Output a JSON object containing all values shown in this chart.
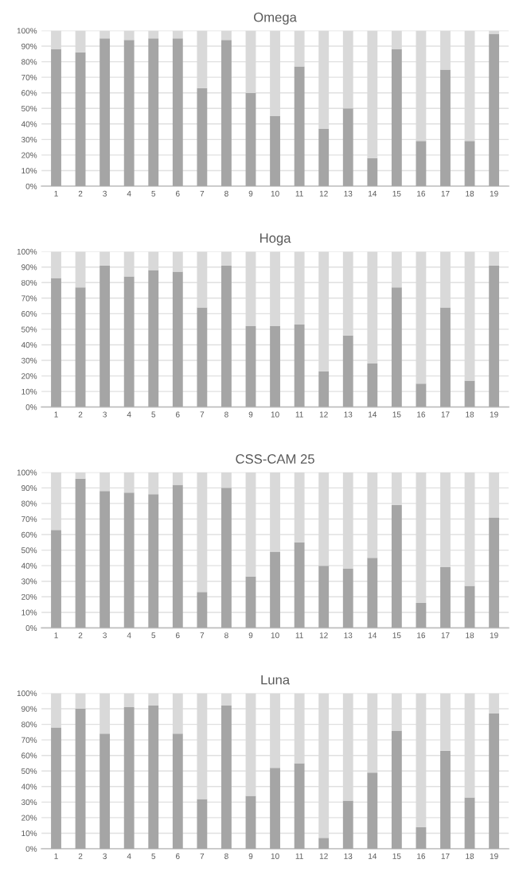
{
  "chart_data": [
    {
      "type": "bar",
      "title": "Omega",
      "stacked": true,
      "categories": [
        "1",
        "2",
        "3",
        "4",
        "5",
        "6",
        "7",
        "8",
        "9",
        "10",
        "11",
        "12",
        "13",
        "14",
        "15",
        "16",
        "17",
        "18",
        "19"
      ],
      "series": [
        {
          "color": "#a5a5a5",
          "values": [
            88,
            86,
            95,
            94,
            95,
            95,
            63,
            94,
            60,
            45,
            77,
            37,
            50,
            18,
            88,
            29,
            75,
            29,
            98
          ]
        },
        {
          "color": "#d9d9d9",
          "values": [
            12,
            14,
            5,
            6,
            5,
            5,
            37,
            6,
            40,
            55,
            23,
            63,
            50,
            82,
            12,
            71,
            25,
            71,
            2
          ]
        }
      ],
      "ylim": [
        0,
        100
      ],
      "yticks": [
        {
          "value": 0,
          "label": "0%"
        },
        {
          "value": 10,
          "label": "10%"
        },
        {
          "value": 20,
          "label": "20%"
        },
        {
          "value": 30,
          "label": "30%"
        },
        {
          "value": 40,
          "label": "40%"
        },
        {
          "value": 50,
          "label": "50%"
        },
        {
          "value": 60,
          "label": "60%"
        },
        {
          "value": 70,
          "label": "70%"
        },
        {
          "value": 80,
          "label": "80%"
        },
        {
          "value": 90,
          "label": "90%"
        },
        {
          "value": 100,
          "label": "100%"
        }
      ],
      "grid": "y"
    },
    {
      "type": "bar",
      "title": "Hoga",
      "stacked": true,
      "categories": [
        "1",
        "2",
        "3",
        "4",
        "5",
        "6",
        "7",
        "8",
        "9",
        "10",
        "11",
        "12",
        "13",
        "14",
        "15",
        "16",
        "17",
        "18",
        "19"
      ],
      "series": [
        {
          "color": "#a5a5a5",
          "values": [
            83,
            77,
            91,
            84,
            88,
            87,
            64,
            91,
            52,
            52,
            53,
            23,
            46,
            28,
            77,
            15,
            64,
            17,
            91
          ]
        },
        {
          "color": "#d9d9d9",
          "values": [
            17,
            23,
            9,
            16,
            12,
            13,
            36,
            9,
            48,
            48,
            47,
            77,
            54,
            72,
            23,
            85,
            36,
            83,
            9
          ]
        }
      ],
      "ylim": [
        0,
        100
      ],
      "yticks": [
        {
          "value": 0,
          "label": "0%"
        },
        {
          "value": 10,
          "label": "10%"
        },
        {
          "value": 20,
          "label": "20%"
        },
        {
          "value": 30,
          "label": "30%"
        },
        {
          "value": 40,
          "label": "40%"
        },
        {
          "value": 50,
          "label": "50%"
        },
        {
          "value": 60,
          "label": "60%"
        },
        {
          "value": 70,
          "label": "70%"
        },
        {
          "value": 80,
          "label": "80%"
        },
        {
          "value": 90,
          "label": "90%"
        },
        {
          "value": 100,
          "label": "100%"
        }
      ],
      "grid": "y"
    },
    {
      "type": "bar",
      "title": "CSS-CAM 25",
      "stacked": true,
      "categories": [
        "1",
        "2",
        "3",
        "4",
        "5",
        "6",
        "7",
        "8",
        "9",
        "10",
        "11",
        "12",
        "13",
        "14",
        "15",
        "16",
        "17",
        "18",
        "19"
      ],
      "series": [
        {
          "color": "#a5a5a5",
          "values": [
            63,
            96,
            88,
            87,
            86,
            92,
            23,
            90,
            33,
            49,
            55,
            40,
            38,
            45,
            79,
            16,
            39,
            27,
            71
          ]
        },
        {
          "color": "#d9d9d9",
          "values": [
            37,
            4,
            12,
            13,
            14,
            8,
            77,
            10,
            67,
            51,
            45,
            60,
            62,
            55,
            21,
            84,
            61,
            73,
            29
          ]
        }
      ],
      "ylim": [
        0,
        100
      ],
      "yticks": [
        {
          "value": 0,
          "label": "0%"
        },
        {
          "value": 10,
          "label": "10%"
        },
        {
          "value": 20,
          "label": "20%"
        },
        {
          "value": 30,
          "label": "30%"
        },
        {
          "value": 40,
          "label": "40%"
        },
        {
          "value": 50,
          "label": "50%"
        },
        {
          "value": 60,
          "label": "60%"
        },
        {
          "value": 70,
          "label": "70%"
        },
        {
          "value": 80,
          "label": "80%"
        },
        {
          "value": 90,
          "label": "90%"
        },
        {
          "value": 100,
          "label": "100%"
        }
      ],
      "grid": "y"
    },
    {
      "type": "bar",
      "title": "Luna",
      "stacked": true,
      "categories": [
        "1",
        "2",
        "3",
        "4",
        "5",
        "6",
        "7",
        "8",
        "9",
        "10",
        "11",
        "12",
        "13",
        "14",
        "15",
        "16",
        "17",
        "18",
        "19"
      ],
      "series": [
        {
          "color": "#a5a5a5",
          "values": [
            78,
            90,
            74,
            91,
            92,
            74,
            32,
            92,
            34,
            52,
            55,
            7,
            31,
            49,
            76,
            14,
            63,
            33,
            87
          ]
        },
        {
          "color": "#d9d9d9",
          "values": [
            22,
            10,
            26,
            9,
            8,
            26,
            68,
            8,
            66,
            48,
            45,
            93,
            69,
            51,
            24,
            86,
            37,
            67,
            13
          ]
        }
      ],
      "ylim": [
        0,
        100
      ],
      "yticks": [
        {
          "value": 0,
          "label": "0%"
        },
        {
          "value": 10,
          "label": "10%"
        },
        {
          "value": 20,
          "label": "20%"
        },
        {
          "value": 30,
          "label": "30%"
        },
        {
          "value": 40,
          "label": "40%"
        },
        {
          "value": 50,
          "label": "50%"
        },
        {
          "value": 60,
          "label": "60%"
        },
        {
          "value": 70,
          "label": "70%"
        },
        {
          "value": 80,
          "label": "80%"
        },
        {
          "value": 90,
          "label": "90%"
        },
        {
          "value": 100,
          "label": "100%"
        }
      ],
      "grid": "y"
    }
  ]
}
